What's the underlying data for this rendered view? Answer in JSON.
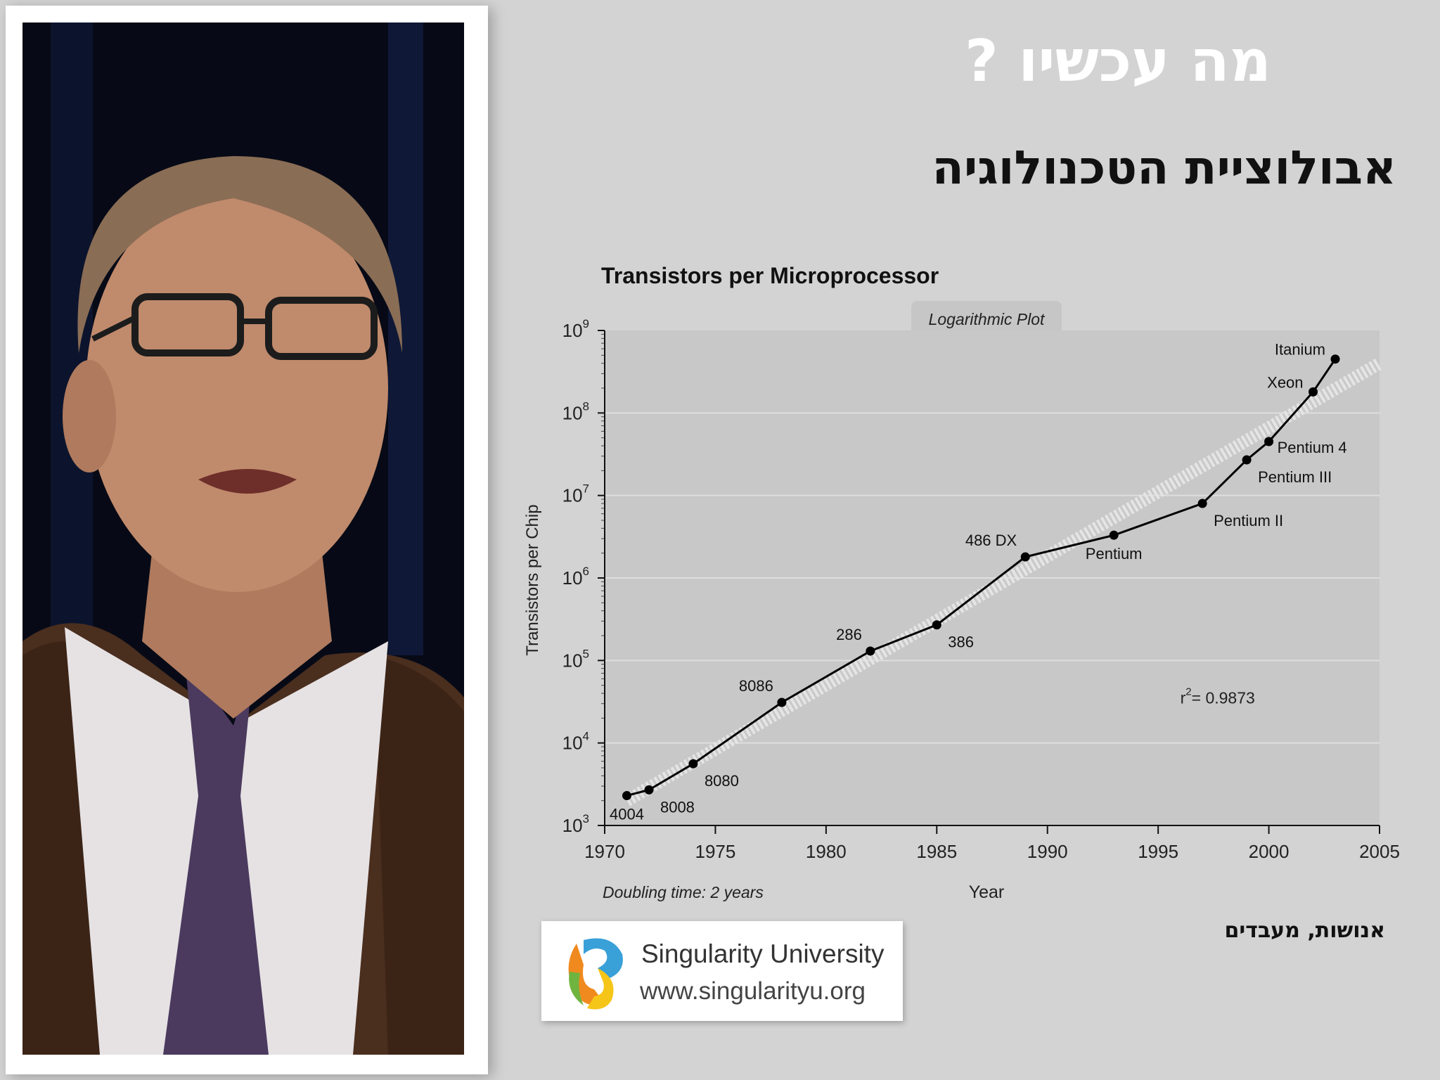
{
  "slide": {
    "title": "מה עכשיו ?",
    "subtitle": "אבולוציית הטכנולוגיה",
    "caption": "אנושות, מעבדים"
  },
  "logo": {
    "name": "Singularity University",
    "url": "www.singularityu.org"
  },
  "chart_data": {
    "type": "line",
    "title": "Transistors per Microprocessor",
    "subtitle": "Logarithmic Plot",
    "xlabel": "Year",
    "ylabel": "Transistors per Chip",
    "xlim": [
      1970,
      2005
    ],
    "ylim": [
      1000,
      1000000000
    ],
    "y_scale": "log",
    "x_ticks": [
      1970,
      1975,
      1980,
      1985,
      1990,
      1995,
      2000,
      2005
    ],
    "y_ticks": [
      {
        "exp": 3,
        "label": "10",
        "sup": "3"
      },
      {
        "exp": 4,
        "label": "10",
        "sup": "4"
      },
      {
        "exp": 5,
        "label": "10",
        "sup": "5"
      },
      {
        "exp": 6,
        "label": "10",
        "sup": "6"
      },
      {
        "exp": 7,
        "label": "10",
        "sup": "7"
      },
      {
        "exp": 8,
        "label": "10",
        "sup": "8"
      },
      {
        "exp": 9,
        "label": "10",
        "sup": "9"
      }
    ],
    "grid": true,
    "points": [
      {
        "label": "4004",
        "x": 1971,
        "y": 2300,
        "pos": "below"
      },
      {
        "label": "8008",
        "x": 1972,
        "y": 2700,
        "pos": "below-right"
      },
      {
        "label": "8080",
        "x": 1974,
        "y": 5600,
        "pos": "below-right"
      },
      {
        "label": "8086",
        "x": 1978,
        "y": 31000,
        "pos": "above-left"
      },
      {
        "label": "286",
        "x": 1982,
        "y": 130000,
        "pos": "above-left"
      },
      {
        "label": "386",
        "x": 1985,
        "y": 270000,
        "pos": "below-right"
      },
      {
        "label": "486 DX",
        "x": 1989,
        "y": 1800000,
        "pos": "above-left"
      },
      {
        "label": "Pentium",
        "x": 1993,
        "y": 3300000,
        "pos": "below"
      },
      {
        "label": "Pentium II",
        "x": 1997,
        "y": 8000000,
        "pos": "below-right"
      },
      {
        "label": "Pentium III",
        "x": 1999,
        "y": 27000000,
        "pos": "below-right"
      },
      {
        "label": "Pentium 4",
        "x": 2000,
        "y": 45000000,
        "pos": "right"
      },
      {
        "label": "Xeon",
        "x": 2002,
        "y": 180000000,
        "pos": "left"
      },
      {
        "label": "Itanium",
        "x": 2003,
        "y": 450000000,
        "pos": "left"
      }
    ],
    "trend": {
      "x": [
        1971,
        2005
      ],
      "y": [
        2000,
        400000000
      ]
    },
    "annotation": {
      "text": "r",
      "sup": "2",
      "rest": "= 0.9873",
      "x": 1996,
      "y": 30000
    },
    "footnote": "Doubling time: 2 years",
    "colors": {
      "plot_bg": "#c8c8c8",
      "line": "#000000",
      "trend": "#e4e4e4"
    }
  }
}
